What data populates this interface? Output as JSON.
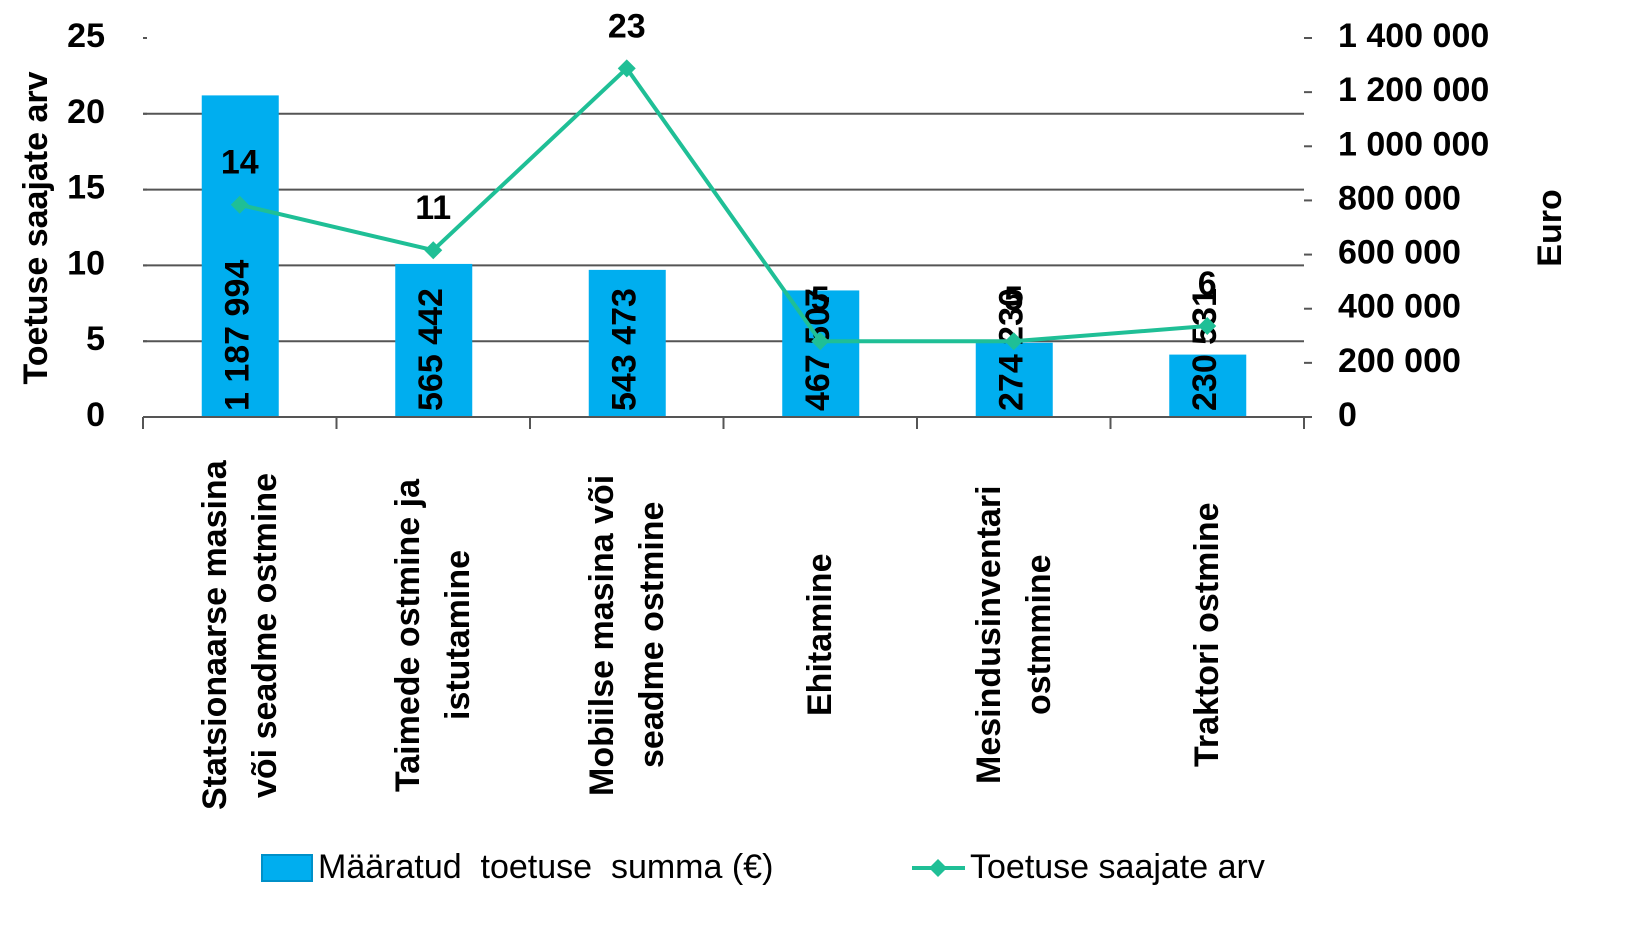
{
  "chart_data": {
    "type": "bar",
    "ylabel": "Toetuse saajate arv",
    "y2label": "Euro",
    "categories": [
      "Statsionaarse masina või seadme ostmine",
      "Taimede ostmine ja istutamine",
      "Mobiilse masina või seadme ostmine",
      "Ehitamine",
      "Mesindusinventari ostmmine",
      "Traktori ostmine"
    ],
    "series": [
      {
        "name": "Määratud  toetuse  summa (€)",
        "type": "bar",
        "axis": "y2",
        "color": "#00aeef",
        "values": [
          1187994,
          565442,
          543473,
          467507,
          274230,
          230531
        ],
        "value_labels": [
          "1 187 994",
          "565 442",
          "543 473",
          "467 507",
          "274 230",
          "230 531"
        ]
      },
      {
        "name": "Toetuse saajate arv",
        "type": "line",
        "color": "#1fbf96",
        "values": [
          14,
          11,
          23,
          5,
          5,
          6
        ]
      }
    ],
    "ylim": [
      0,
      25
    ],
    "yticks": [
      0,
      5,
      10,
      15,
      20,
      25
    ],
    "y2lim": [
      0,
      1400000
    ],
    "y2ticks": [
      0,
      {
        "value": 200000,
        "label": "200 000"
      },
      {
        "value": 400000,
        "label": "400 000"
      },
      {
        "value": 600000,
        "label": "600 000"
      },
      {
        "value": 800000,
        "label": "800 000"
      },
      {
        "value": 1000000,
        "label": "1 000 000"
      },
      {
        "value": 1200000,
        "label": "1 200 000"
      },
      {
        "value": 1400000,
        "label": "1 400 000"
      }
    ],
    "grid": true,
    "legend": "bottom"
  }
}
